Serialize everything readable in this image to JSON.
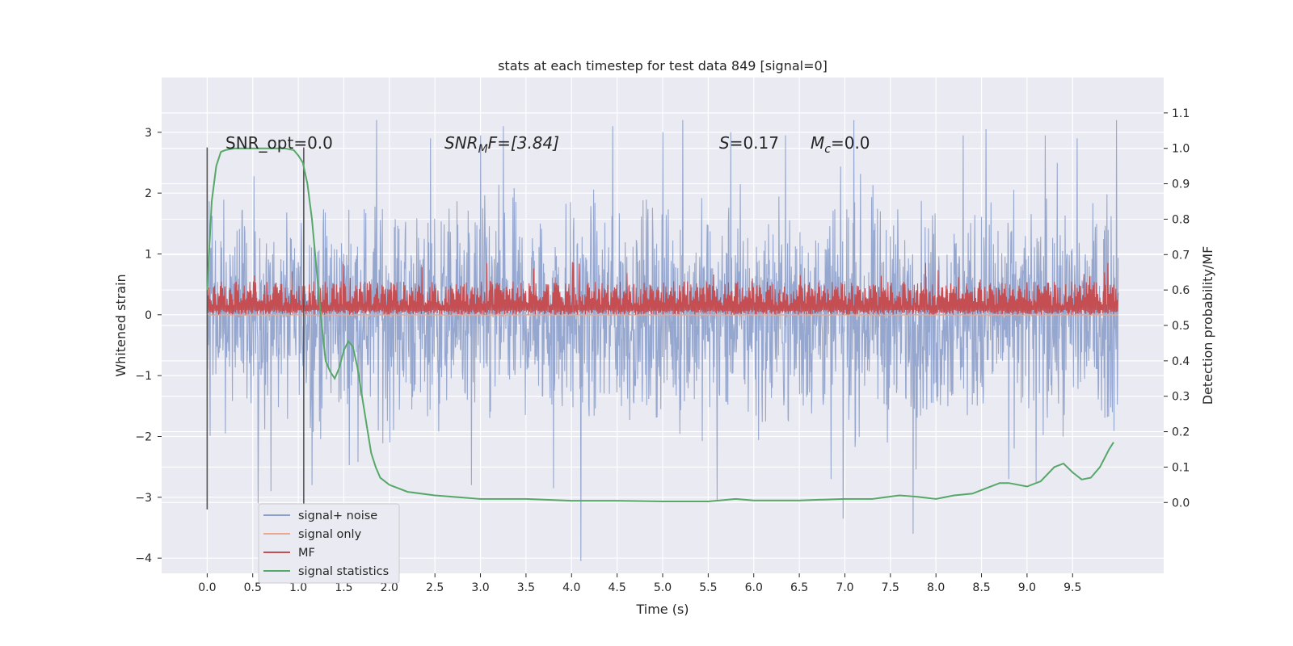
{
  "chart_data": {
    "type": "line",
    "title": "stats at each timestep for test data 849 [signal=0]",
    "xlabel": "Time (s)",
    "ylabel": "Whitened strain",
    "ylabel_right": "Detection probability/MF",
    "xlim": [
      -0.5,
      10.5
    ],
    "ylim": [
      -4.25,
      3.9
    ],
    "ylim_right": [
      -0.2,
      1.2
    ],
    "x_ticks": [
      0.0,
      0.5,
      1.0,
      1.5,
      2.0,
      2.5,
      3.0,
      3.5,
      4.0,
      4.5,
      5.0,
      5.5,
      6.0,
      6.5,
      7.0,
      7.5,
      8.0,
      8.5,
      9.0,
      9.5
    ],
    "x_tick_labels": [
      "0.0",
      "0.5",
      "1.0",
      "1.5",
      "2.0",
      "2.5",
      "3.0",
      "3.5",
      "4.0",
      "4.5",
      "5.0",
      "5.5",
      "6.0",
      "6.5",
      "7.0",
      "7.5",
      "8.0",
      "8.5",
      "9.0",
      "9.5"
    ],
    "y_ticks": [
      -4,
      -3,
      -2,
      -1,
      0,
      1,
      2,
      3
    ],
    "y_tick_labels": [
      "−4",
      "−3",
      "−2",
      "−1",
      "0",
      "1",
      "2",
      "3"
    ],
    "y_right_ticks": [
      0.0,
      0.1,
      0.2,
      0.3,
      0.4,
      0.5,
      0.6,
      0.7,
      0.8,
      0.9,
      1.0,
      1.1
    ],
    "y_right_tick_labels": [
      "0.0",
      "0.1",
      "0.2",
      "0.3",
      "0.4",
      "0.5",
      "0.6",
      "0.7",
      "0.8",
      "0.9",
      "1.0",
      "1.1"
    ],
    "grid": true,
    "legend_position": "lower-left",
    "vlines": [
      {
        "x": 0.0,
        "y": [
          -3.2,
          2.75
        ]
      },
      {
        "x": 1.06,
        "y": [
          -3.2,
          2.75
        ]
      }
    ],
    "annotations": {
      "snr_opt": "SNR_opt=0.0",
      "snr_mf_main": "SNR",
      "snr_mf_sub": "M",
      "snr_mf_tail": "F=[3.84]",
      "s_main": "S",
      "s_tail": "=0.17",
      "mc_main": "M",
      "mc_sub": "c",
      "mc_tail": "=0.0"
    },
    "series": [
      {
        "name": "signal+ noise",
        "color": "#8da0cb",
        "axis": "left",
        "x_range": [
          0.0,
          10.0
        ],
        "amplitude_estimate": 1.0,
        "spikes": [
          [
            0.56,
            -3.1
          ],
          [
            0.7,
            -2.9
          ],
          [
            1.86,
            3.2
          ],
          [
            1.15,
            -2.8
          ],
          [
            2.45,
            2.9
          ],
          [
            3.0,
            2.95
          ],
          [
            3.25,
            3.1
          ],
          [
            4.1,
            -4.05
          ],
          [
            4.45,
            3.1
          ],
          [
            5.0,
            3.0
          ],
          [
            5.22,
            3.4
          ],
          [
            5.6,
            -3.05
          ],
          [
            5.75,
            3.0
          ],
          [
            6.35,
            2.95
          ],
          [
            6.98,
            -3.35
          ],
          [
            7.1,
            3.5
          ],
          [
            7.75,
            -3.6
          ],
          [
            8.3,
            2.95
          ],
          [
            8.55,
            3.05
          ],
          [
            9.2,
            2.95
          ],
          [
            9.55,
            2.9
          ],
          [
            9.98,
            3.55
          ],
          [
            2.9,
            -2.8
          ],
          [
            3.8,
            -2.85
          ],
          [
            6.85,
            -2.7
          ],
          [
            8.8,
            -2.7
          ],
          [
            9.1,
            -2.75
          ]
        ]
      },
      {
        "name": "signal only",
        "color": "#e8a98f",
        "axis": "left",
        "x": [
          0.0,
          10.0
        ],
        "y": [
          0.0,
          0.0
        ]
      },
      {
        "name": "MF",
        "color": "#c44e52",
        "axis": "left",
        "x_range": [
          0.0,
          10.0
        ],
        "base": 0.0,
        "typical_top": 0.5,
        "max": 0.9
      },
      {
        "name": "signal statistics",
        "color": "#55a868",
        "axis": "right",
        "x": [
          0.0,
          0.05,
          0.1,
          0.15,
          0.2,
          0.3,
          0.5,
          0.7,
          0.85,
          0.95,
          1.0,
          1.05,
          1.1,
          1.15,
          1.2,
          1.25,
          1.3,
          1.35,
          1.4,
          1.45,
          1.5,
          1.55,
          1.6,
          1.65,
          1.7,
          1.75,
          1.8,
          1.85,
          1.9,
          2.0,
          2.2,
          2.5,
          3.0,
          3.5,
          4.0,
          4.5,
          5.0,
          5.5,
          5.8,
          6.0,
          6.5,
          7.0,
          7.3,
          7.6,
          7.8,
          8.0,
          8.2,
          8.4,
          8.55,
          8.7,
          8.8,
          9.0,
          9.15,
          9.3,
          9.4,
          9.5,
          9.6,
          9.7,
          9.8,
          9.9,
          9.95
        ],
        "y": [
          0.6,
          0.85,
          0.95,
          0.99,
          0.995,
          1.0,
          1.0,
          1.0,
          1.0,
          0.995,
          0.98,
          0.96,
          0.9,
          0.8,
          0.66,
          0.52,
          0.4,
          0.37,
          0.35,
          0.38,
          0.43,
          0.455,
          0.44,
          0.38,
          0.3,
          0.22,
          0.14,
          0.1,
          0.07,
          0.05,
          0.03,
          0.02,
          0.01,
          0.01,
          0.005,
          0.005,
          0.003,
          0.003,
          0.01,
          0.006,
          0.006,
          0.01,
          0.01,
          0.02,
          0.016,
          0.01,
          0.02,
          0.025,
          0.04,
          0.055,
          0.055,
          0.045,
          0.06,
          0.1,
          0.11,
          0.085,
          0.065,
          0.07,
          0.1,
          0.15,
          0.17
        ]
      }
    ]
  }
}
